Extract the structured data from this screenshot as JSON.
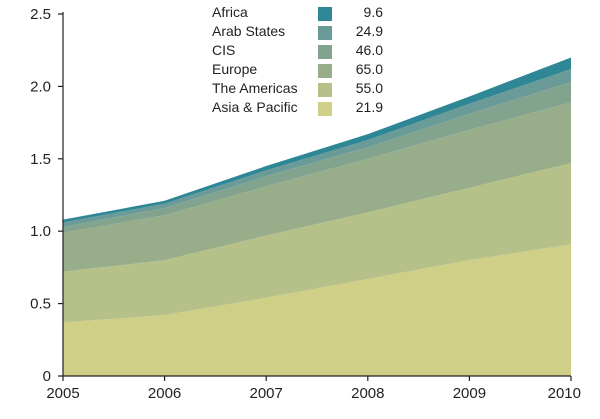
{
  "chart_data": {
    "type": "area",
    "stacked": true,
    "x": [
      2005,
      2006,
      2007,
      2008,
      2009,
      2010
    ],
    "x_tick_labels": [
      "2005",
      "2006",
      "2007",
      "2008",
      "2009",
      "2010"
    ],
    "y_tick_labels": [
      "0",
      "0.5",
      "1.0",
      "1.5",
      "2.0",
      "2.5"
    ],
    "ylim": [
      0,
      2.5
    ],
    "grid": false,
    "legend_position": "top-center",
    "series": [
      {
        "name": "Asia & Pacific",
        "legend_value": "21.9",
        "color": "#cfcf88",
        "values": [
          0.37,
          0.42,
          0.54,
          0.67,
          0.8,
          0.91
        ]
      },
      {
        "name": "The Americas",
        "legend_value": "55.0",
        "color": "#b6c089",
        "values": [
          0.35,
          0.38,
          0.43,
          0.46,
          0.5,
          0.56
        ]
      },
      {
        "name": "Europe",
        "legend_value": "65.0",
        "color": "#98ad8a",
        "values": [
          0.27,
          0.31,
          0.34,
          0.37,
          0.4,
          0.42
        ]
      },
      {
        "name": "CIS",
        "legend_value": "46.0",
        "color": "#82a38e",
        "values": [
          0.04,
          0.05,
          0.07,
          0.08,
          0.11,
          0.14
        ]
      },
      {
        "name": "Arab States",
        "legend_value": "24.9",
        "color": "#6a9b98",
        "values": [
          0.03,
          0.03,
          0.04,
          0.05,
          0.07,
          0.09
        ]
      },
      {
        "name": "Africa",
        "legend_value": "9.6",
        "color": "#2f8795",
        "values": [
          0.02,
          0.02,
          0.03,
          0.04,
          0.05,
          0.08
        ]
      }
    ]
  }
}
